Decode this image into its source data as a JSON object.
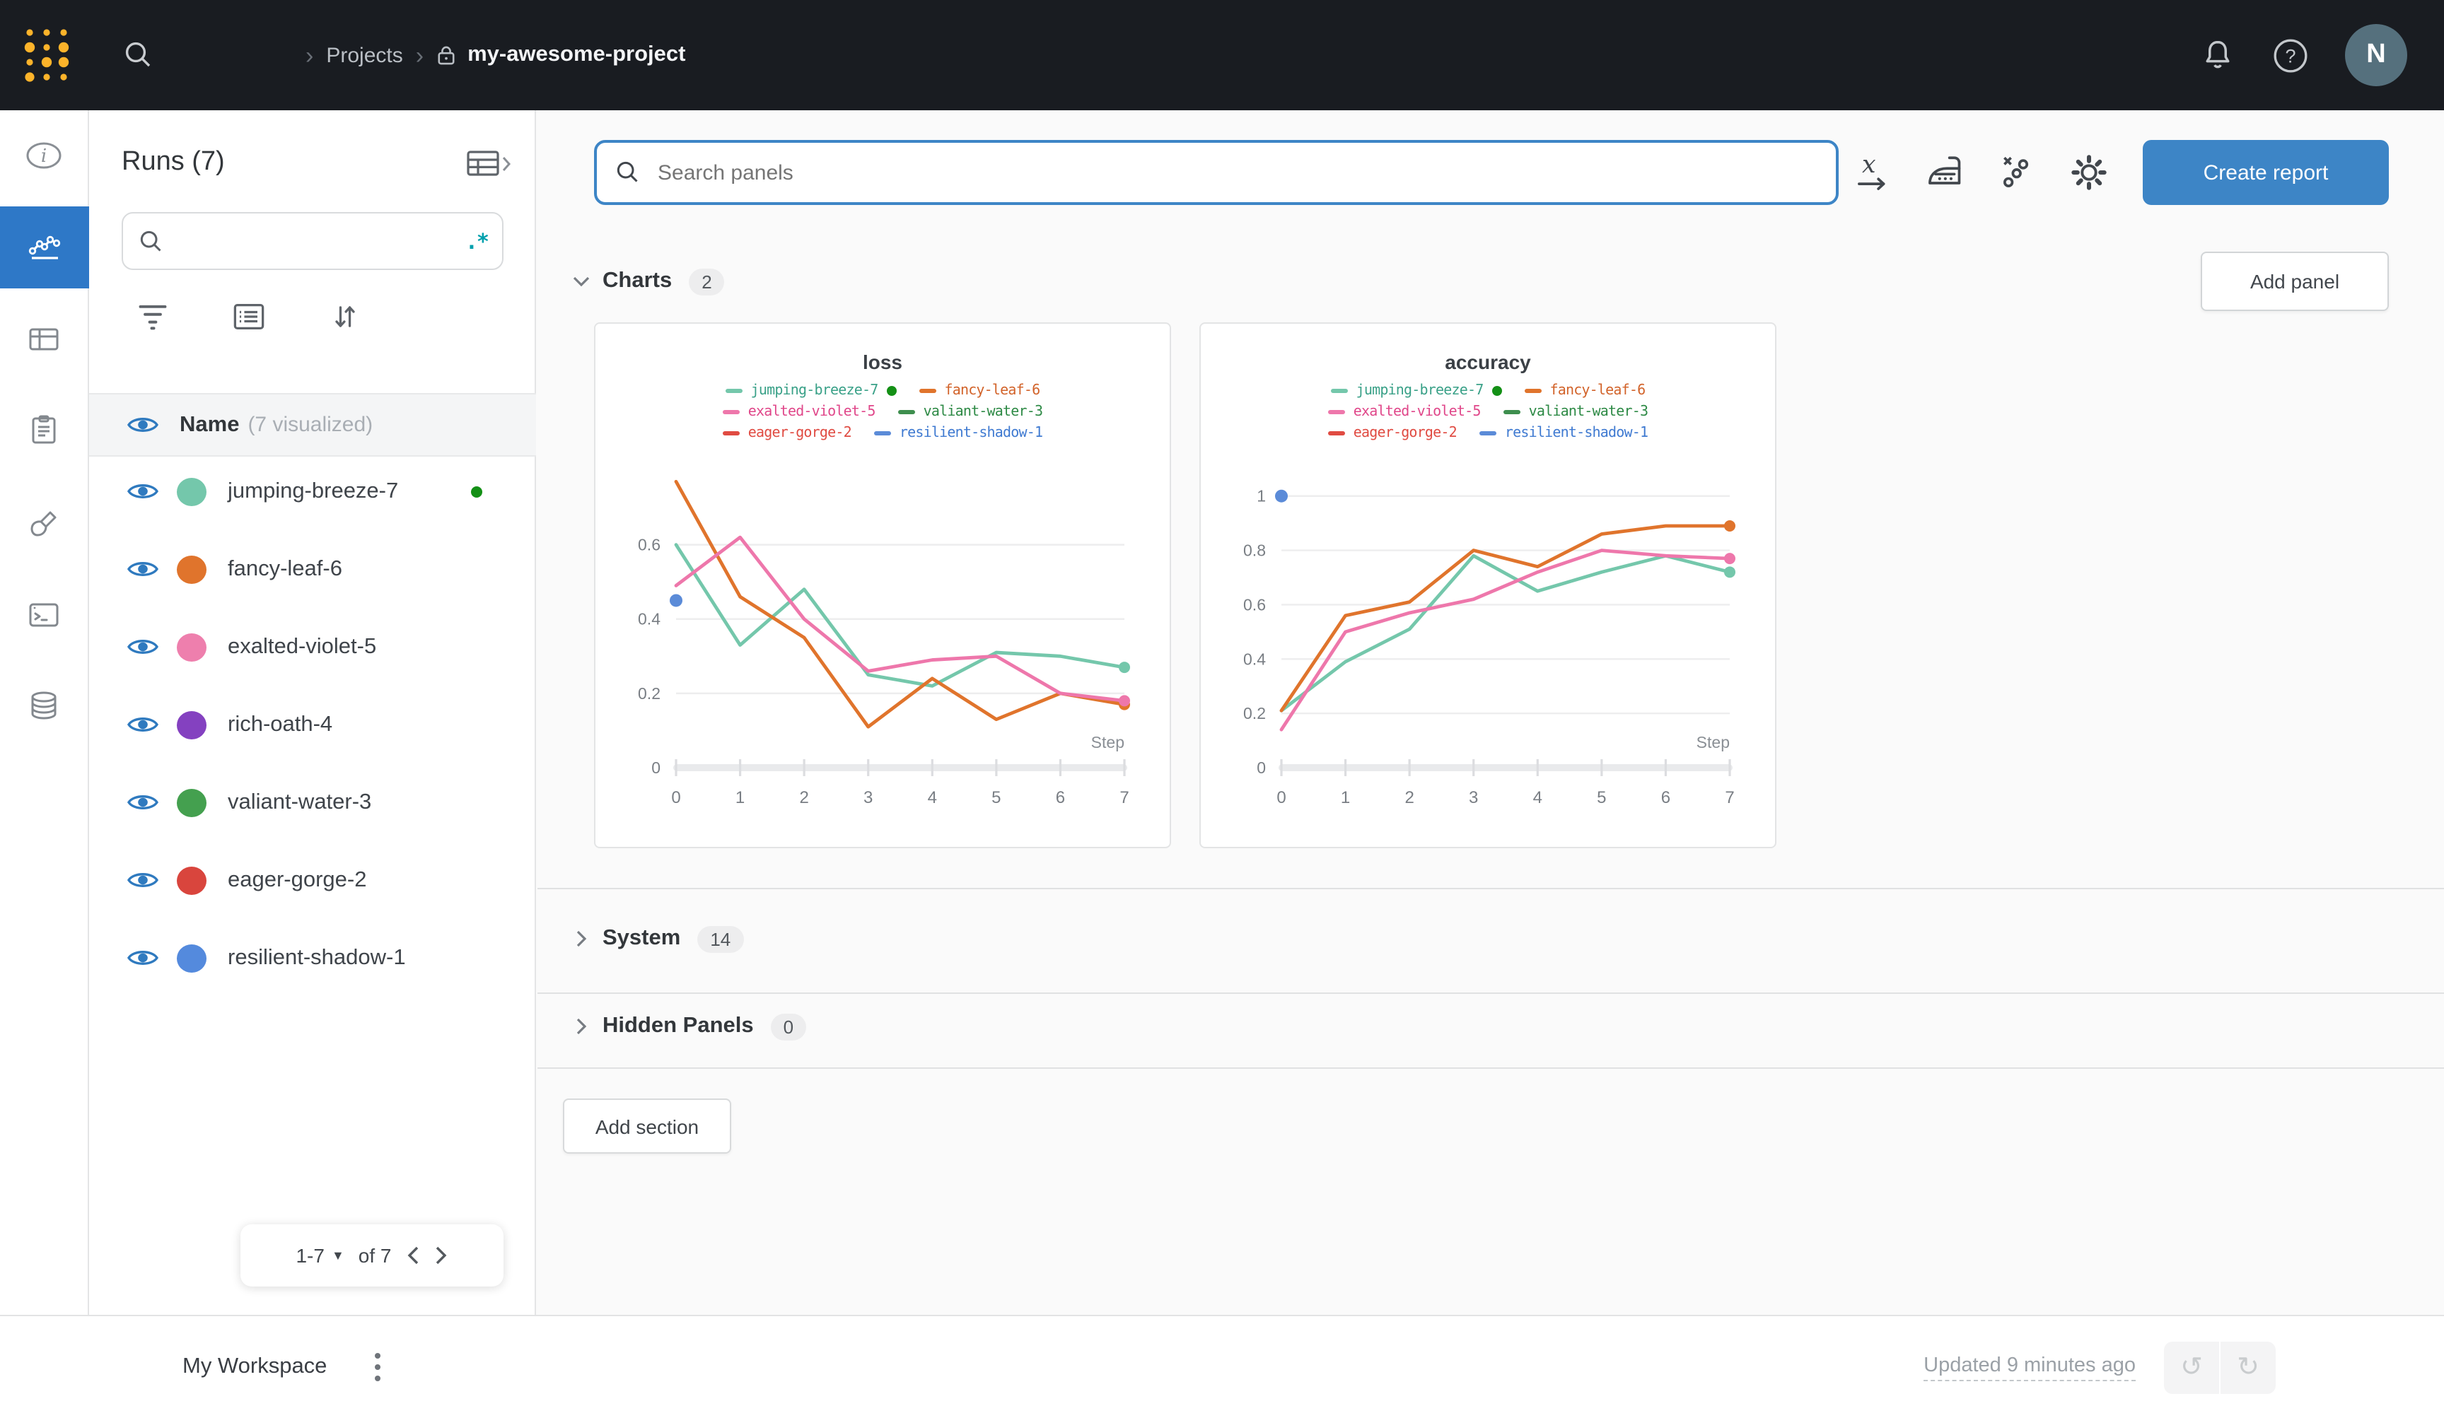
{
  "topnav": {
    "breadcrumb": {
      "projects": "Projects",
      "project": "my-awesome-project"
    },
    "avatar_initial": "N"
  },
  "runs_panel": {
    "title": "Runs (7)",
    "search_placeholder": "",
    "regex_label": ".*",
    "header_name": "Name",
    "header_visualized": "(7 visualized)",
    "runs": [
      {
        "name": "jumping-breeze-7",
        "color": "#74c7ab",
        "running": true
      },
      {
        "name": "fancy-leaf-6",
        "color": "#e0742c"
      },
      {
        "name": "exalted-violet-5",
        "color": "#ee7fad"
      },
      {
        "name": "rich-oath-4",
        "color": "#8441c0"
      },
      {
        "name": "valiant-water-3",
        "color": "#44a04f"
      },
      {
        "name": "eager-gorge-2",
        "color": "#d9453d"
      },
      {
        "name": "resilient-shadow-1",
        "color": "#548add"
      }
    ],
    "pagination": {
      "range": "1-7",
      "of": "of 7"
    }
  },
  "main": {
    "search_placeholder": "Search panels",
    "create_report": "Create report",
    "add_panel": "Add panel",
    "charts_section": "Charts",
    "charts_count": "2",
    "system_section": "System",
    "system_count": "14",
    "hidden_section": "Hidden Panels",
    "hidden_count": "0",
    "add_section": "Add section"
  },
  "footer": {
    "workspace": "My Workspace",
    "updated": "Updated 9 minutes ago"
  },
  "chart_data": [
    {
      "type": "line",
      "title": "loss",
      "xlabel": "Step",
      "x": [
        0,
        1,
        2,
        3,
        4,
        5,
        6,
        7
      ],
      "yticks": [
        0,
        0.2,
        0.4,
        0.6
      ],
      "ylim": [
        0,
        0.78
      ],
      "grid": true,
      "legend_position": "top",
      "series": [
        {
          "name": "jumping-breeze-7",
          "color": "#74c7ab",
          "label_color": "#3aa188",
          "values": [
            0.6,
            0.33,
            0.48,
            0.25,
            0.22,
            0.31,
            0.3,
            0.27
          ],
          "end_dot": true,
          "running": true
        },
        {
          "name": "fancy-leaf-6",
          "color": "#e0742c",
          "label_color": "#d2632a",
          "values": [
            0.77,
            0.46,
            0.35,
            0.11,
            0.24,
            0.13,
            0.2,
            0.17
          ],
          "end_dot": true
        },
        {
          "name": "exalted-violet-5",
          "color": "#ee77ab",
          "label_color": "#e0478a",
          "values": [
            0.49,
            0.62,
            0.4,
            0.26,
            0.29,
            0.3,
            0.2,
            0.18
          ],
          "end_dot": true
        },
        {
          "name": "valiant-water-3",
          "color": "#3e8e4e",
          "label_color": "#2e8a46",
          "values": []
        },
        {
          "name": "eager-gorge-2",
          "color": "#e04b42",
          "label_color": "#e04b42",
          "values": []
        },
        {
          "name": "resilient-shadow-1",
          "color": "#5b8bd8",
          "label_color": "#3f7ad1",
          "values": [],
          "point": [
            0,
            0.45
          ]
        }
      ]
    },
    {
      "type": "line",
      "title": "accuracy",
      "xlabel": "Step",
      "x": [
        0,
        1,
        2,
        3,
        4,
        5,
        6,
        7
      ],
      "yticks": [
        0,
        0.2,
        0.4,
        0.6,
        0.8,
        1
      ],
      "ylim": [
        0,
        1.067
      ],
      "grid": true,
      "legend_position": "top",
      "series": [
        {
          "name": "jumping-breeze-7",
          "color": "#74c7ab",
          "label_color": "#3aa188",
          "values": [
            0.21,
            0.39,
            0.51,
            0.78,
            0.65,
            0.72,
            0.78,
            0.72
          ],
          "end_dot": true,
          "running": true
        },
        {
          "name": "fancy-leaf-6",
          "color": "#e0742c",
          "label_color": "#d2632a",
          "values": [
            0.21,
            0.56,
            0.61,
            0.8,
            0.74,
            0.86,
            0.89,
            0.89
          ],
          "end_dot": true
        },
        {
          "name": "exalted-violet-5",
          "color": "#ee77ab",
          "label_color": "#e0478a",
          "values": [
            0.14,
            0.5,
            0.57,
            0.62,
            0.72,
            0.8,
            0.78,
            0.77
          ],
          "end_dot": true
        },
        {
          "name": "valiant-water-3",
          "color": "#3e8e4e",
          "label_color": "#2e8a46",
          "values": []
        },
        {
          "name": "eager-gorge-2",
          "color": "#e04b42",
          "label_color": "#e04b42",
          "values": []
        },
        {
          "name": "resilient-shadow-1",
          "color": "#5b8bd8",
          "label_color": "#3f7ad1",
          "values": [],
          "point": [
            0,
            1.0
          ]
        }
      ]
    }
  ]
}
